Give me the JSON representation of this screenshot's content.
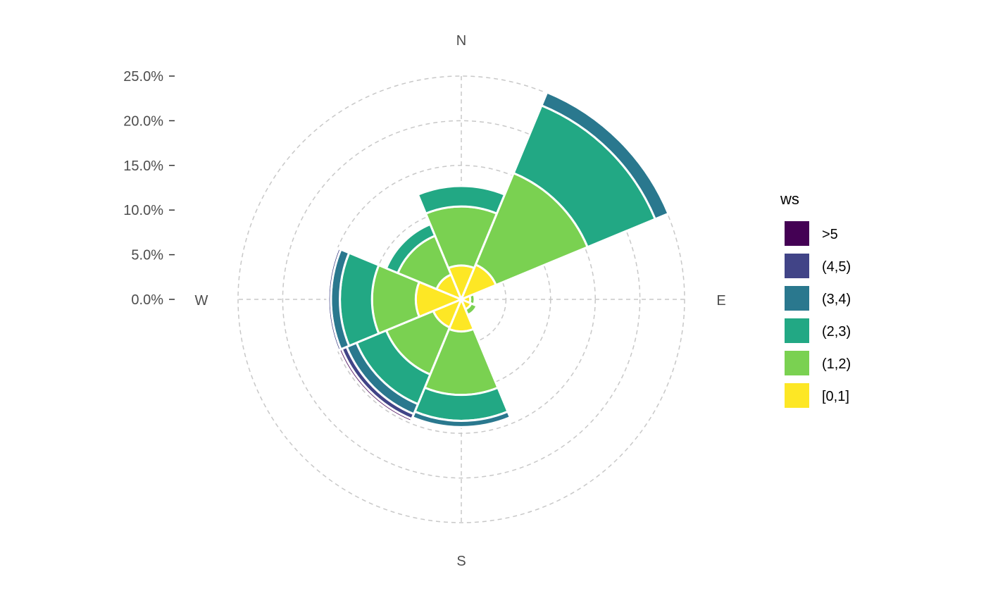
{
  "chart_data": {
    "type": "polar-stacked-bar",
    "title": "",
    "legend": {
      "title": "ws",
      "placement": "right"
    },
    "radial_axis": {
      "ticks": [
        "0.0%",
        "5.0%",
        "10.0%",
        "15.0%",
        "20.0%",
        "25.0%"
      ],
      "range": [
        0,
        25
      ]
    },
    "directions": [
      "N",
      "E",
      "S",
      "W"
    ],
    "sectors_deg": [
      0,
      45,
      90,
      135,
      180,
      225,
      270,
      315
    ],
    "series": [
      {
        "name": "[0,1]",
        "color": "#FDE725",
        "values": [
          3.8,
          4.2,
          1.0,
          1.2,
          3.6,
          3.4,
          5.1,
          3.0
        ]
      },
      {
        "name": "(1,2)",
        "color": "#7AD151",
        "values": [
          6.6,
          11.1,
          0.5,
          0.7,
          7.1,
          5.7,
          4.9,
          4.7
        ]
      },
      {
        "name": "(2,3)",
        "color": "#22A884",
        "values": [
          2.3,
          8.2,
          0.0,
          0.2,
          2.9,
          3.6,
          3.6,
          1.4
        ]
      },
      {
        "name": "(3,4)",
        "color": "#2A788E",
        "values": [
          0.0,
          1.6,
          0.0,
          0.0,
          0.7,
          1.2,
          1.0,
          0.0
        ]
      },
      {
        "name": "(4,5)",
        "color": "#414487",
        "values": [
          0.0,
          0.1,
          0.0,
          0.0,
          0.0,
          0.6,
          0.3,
          0.0
        ]
      },
      {
        "name": ">5",
        "color": "#440154",
        "values": [
          0.0,
          0.1,
          0.0,
          0.0,
          0.0,
          0.3,
          0.1,
          0.0
        ]
      }
    ]
  }
}
